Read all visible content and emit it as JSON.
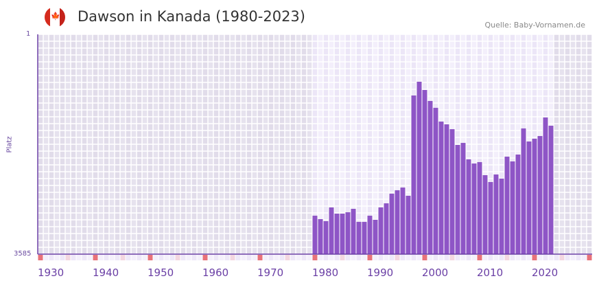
{
  "header": {
    "title": "Dawson in Kanada (1980-2023)",
    "source": "Quelle: Baby-Vornamen.de",
    "flag_icon": "canada-flag-icon"
  },
  "chart_data": {
    "type": "bar",
    "title": "Dawson in Kanada (1980-2023)",
    "xlabel": "",
    "ylabel": "Platz",
    "y_reversed": true,
    "ylim": [
      1,
      3585
    ],
    "y_ticks": [
      "1",
      "3585"
    ],
    "xlim": [
      1930,
      2030
    ],
    "x_ticks": [
      "1930",
      "1940",
      "1950",
      "1960",
      "1970",
      "1980",
      "1990",
      "2000",
      "2010",
      "2020"
    ],
    "x": [
      1980,
      1981,
      1982,
      1983,
      1984,
      1985,
      1986,
      1987,
      1988,
      1989,
      1990,
      1991,
      1992,
      1993,
      1994,
      1995,
      1996,
      1997,
      1998,
      1999,
      2000,
      2001,
      2002,
      2003,
      2004,
      2005,
      2006,
      2007,
      2008,
      2009,
      2010,
      2011,
      2012,
      2013,
      2014,
      2015,
      2016,
      2017,
      2018,
      2019,
      2020,
      2021,
      2022,
      2023
    ],
    "values": [
      2958,
      3014,
      3047,
      2823,
      2924,
      2924,
      2902,
      2846,
      3059,
      3059,
      2958,
      3025,
      2823,
      2756,
      2599,
      2543,
      2499,
      2633,
      998,
      774,
      908,
      1087,
      1199,
      1423,
      1468,
      1547,
      1804,
      1771,
      2040,
      2107,
      2084,
      2297,
      2409,
      2286,
      2353,
      1995,
      2073,
      1961,
      1535,
      1748,
      1703,
      1659,
      1356,
      1491
    ],
    "grid": true,
    "colors": {
      "bar": "#8e55c6",
      "axis": "#6a3fa5",
      "decade_marker": "#e8727a",
      "halfdecade_marker": "#f3d6e0"
    }
  }
}
